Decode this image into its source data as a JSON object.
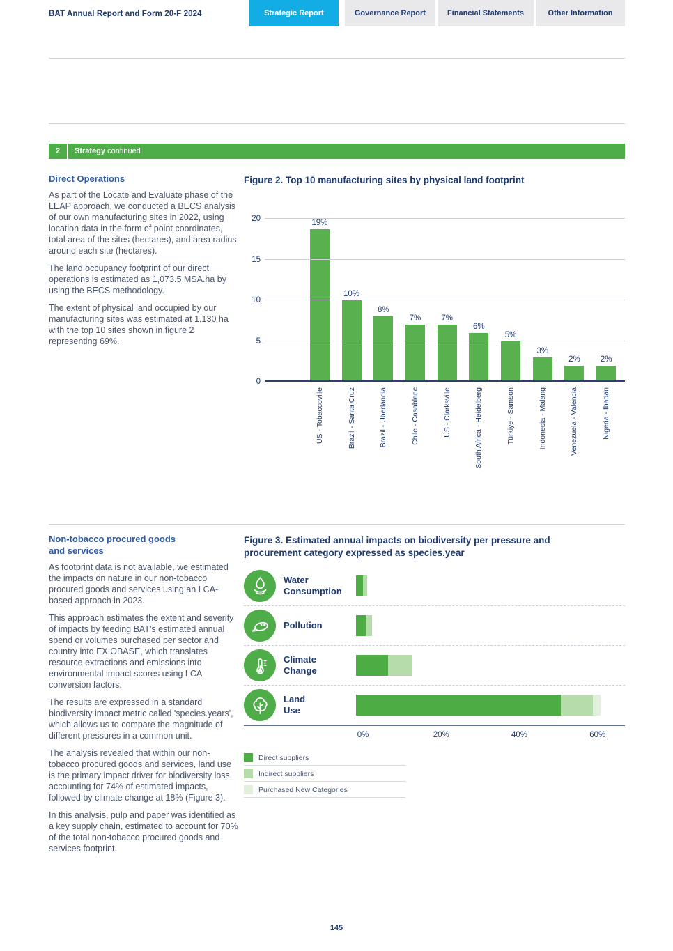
{
  "header": {
    "title": "BAT Annual Report and Form 20-F 2024",
    "tabs": [
      {
        "label": "Strategic Report",
        "active": true
      },
      {
        "label": "Governance Report",
        "active": false
      },
      {
        "label": "Financial Statements",
        "active": false
      },
      {
        "label": "Other Information",
        "active": false
      }
    ]
  },
  "section_band": {
    "number": "2",
    "title": "Strategy",
    "suffix": "continued"
  },
  "colors": {
    "accent_green": "#4fad49",
    "bar_green": "#58b14e",
    "tab_active_cyan": "#12ade4",
    "navy_text": "#1e3a6e",
    "heading_blue": "#2e5ba8"
  },
  "direct_operations": {
    "heading": "Direct Operations",
    "paragraphs": [
      "As part of the Locate and Evaluate phase of the LEAP approach, we conducted a BECS analysis of our own manufacturing sites in 2022, using location data in the form of point coordinates, total area of the sites (hectares), and area radius around each site (hectares).",
      "The land occupancy footprint of our direct operations is estimated as 1,073.5 MSA.ha by using the BECS methodology.",
      "The extent of physical land occupied by our manufacturing sites was estimated at 1,130 ha with the top 10 sites shown in figure 2 representing 69%."
    ]
  },
  "non_tobacco": {
    "heading": "Non-tobacco procured goods and services",
    "paragraphs": [
      "As footprint data is not available, we estimated the impacts on nature in our non-tobacco procured goods and services using an LCA-based approach in 2023.",
      "This approach estimates the extent and severity of impacts by feeding BAT's estimated annual spend or volumes purchased per sector and country into EXIOBASE, which translates resource extractions and emissions into environmental impact scores using LCA conversion factors.",
      "The results are expressed in a standard biodiversity impact metric called 'species.years', which allows us to compare the magnitude of different pressures in a common unit.",
      "The analysis revealed that within our non-tobacco procured goods and services, land use is the primary impact driver for biodiversity loss, accounting for 74% of estimated impacts, followed by climate change at 18% (Figure 3).",
      "In this analysis, pulp and paper was identified as a key supply chain, estimated to account for 70% of the total non-tobacco procured goods and services footprint."
    ]
  },
  "chart_data": [
    {
      "type": "bar",
      "title": "Figure 2. Top 10 manufacturing sites by physical land footprint",
      "categories": [
        "US - Tobaccoville",
        "Brazil - Santa Cruz",
        "Brazil - Uberlandia",
        "Chile - Casablanc",
        "US - Clarksville",
        "South Africa - Heidelberg",
        "Türkiye - Samson",
        "Indonesia - Malang",
        "Venezuela - Valencia",
        "Nigeria - Ibadan"
      ],
      "values": [
        19,
        10,
        8,
        7,
        7,
        6,
        5,
        3,
        2,
        2
      ],
      "labels": [
        "19%",
        "10%",
        "8%",
        "7%",
        "7%",
        "6%",
        "5%",
        "3%",
        "2%",
        "2%"
      ],
      "xlabel": "",
      "ylabel": "",
      "ylim": [
        0,
        20
      ],
      "yticks": [
        0,
        5,
        10,
        15,
        20
      ],
      "grid": true,
      "bar_color": "#58b14e"
    },
    {
      "type": "bar-horizontal-stacked",
      "title": "Figure 3. Estimated annual impacts on biodiversity per pressure and procurement category expressed as species.year",
      "categories": [
        "Water Consumption",
        "Pollution",
        "Climate Change",
        "Land Use"
      ],
      "category_lines": [
        [
          "Water",
          "Consumption"
        ],
        [
          "Pollution",
          ""
        ],
        [
          "Climate",
          "Change"
        ],
        [
          "Land",
          "Use"
        ]
      ],
      "icons": [
        "water-drop",
        "fish",
        "thermometer",
        "tree"
      ],
      "series": [
        {
          "name": "Direct suppliers",
          "color": "#4dac44",
          "values": [
            1.8,
            2.5,
            8,
            51
          ]
        },
        {
          "name": "Indirect suppliers",
          "color": "#b6dcab",
          "values": [
            1,
            1.5,
            6,
            8
          ]
        },
        {
          "name": "Purchased New Categories",
          "color": "#e0f0da",
          "values": [
            0,
            0,
            0,
            2
          ]
        }
      ],
      "xticks": [
        "0%",
        "20%",
        "40%",
        "60%"
      ],
      "xtick_values": [
        0,
        20,
        40,
        60
      ],
      "xlim": [
        0,
        67
      ],
      "grid": false,
      "legend_position": "bottom-left"
    }
  ],
  "footer": {
    "page_number": "145"
  }
}
